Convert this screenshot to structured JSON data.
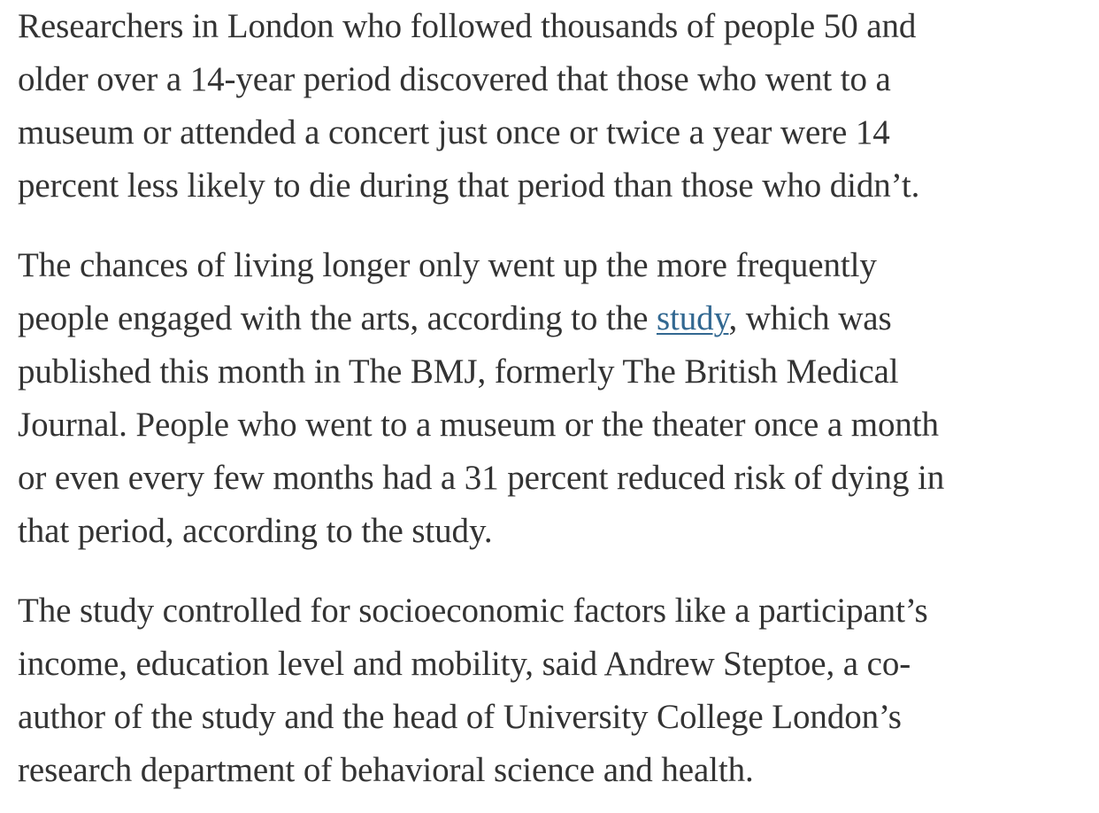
{
  "article": {
    "paragraph_1": {
      "lines": [
        "Researchers in London who followed thousands of people 50 and",
        "older over a 14-year period discovered that those who went to a",
        "museum or attended a concert just once or twice a year were 14",
        "percent less likely to die during that period than those who didn’t."
      ]
    },
    "paragraph_2": {
      "line_1": "The chances of living longer only went up the more frequently",
      "line_2_before_link": "people engaged with the arts, according to the ",
      "link_text": "study",
      "line_2_after_link": ", which was",
      "lines_rest": [
        "published this month in The BMJ, formerly The British Medical",
        "Journal. People who went to a museum or the theater once a month",
        "or even every few months had a 31 percent reduced risk of dying in",
        "that period, according to the study."
      ]
    },
    "paragraph_3": {
      "lines": [
        "The study controlled for socioeconomic factors like a participant’s",
        "income, education level and mobility, said Andrew Steptoe, a co-",
        "author of the study and the head of University College London’s",
        "research department of behavioral science and health."
      ]
    }
  },
  "colors": {
    "body_text": "#333333",
    "link": "#326891",
    "background": "#ffffff"
  }
}
